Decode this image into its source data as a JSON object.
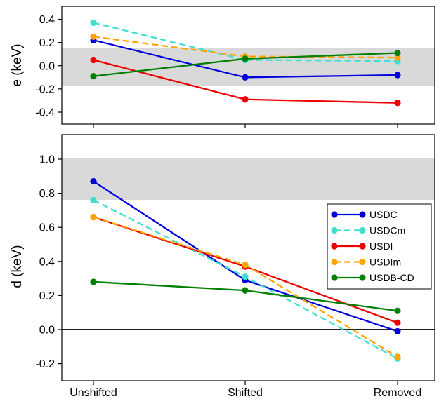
{
  "chart_data": [
    {
      "type": "line",
      "ylabel": "e (keV)",
      "xlabel": "",
      "categories": [
        "Unshifted",
        "Shifted",
        "Removed"
      ],
      "ylim": [
        -0.52,
        0.52
      ],
      "yticks": [
        "0.4",
        "0.2",
        "0.0",
        "-0.2",
        "-0.4"
      ],
      "ytick_values": [
        0.4,
        0.2,
        0.0,
        -0.2,
        -0.4
      ],
      "band": [
        -0.17,
        0.15
      ],
      "band_color": "#d9d9d9",
      "series": [
        {
          "name": "USDC",
          "color": "#0000dd",
          "dashed": false,
          "values": [
            0.22,
            -0.1,
            -0.08
          ]
        },
        {
          "name": "USDCm",
          "color": "#40e0d0",
          "dashed": true,
          "values": [
            0.37,
            0.05,
            0.04
          ]
        },
        {
          "name": "USDI",
          "color": "#ee0000",
          "dashed": false,
          "values": [
            0.05,
            -0.29,
            -0.32
          ]
        },
        {
          "name": "USDIm",
          "color": "#ffa500",
          "dashed": true,
          "values": [
            0.25,
            0.08,
            0.07
          ]
        },
        {
          "name": "USDB-CD",
          "color": "#008000",
          "dashed": false,
          "values": [
            -0.09,
            0.06,
            0.11
          ]
        }
      ]
    },
    {
      "type": "line",
      "ylabel": "d (keV)",
      "xlabel": "",
      "categories": [
        "Unshifted",
        "Shifted",
        "Removed"
      ],
      "ylim": [
        -0.31,
        1.15
      ],
      "yticks": [
        "1.0",
        "0.8",
        "0.6",
        "0.4",
        "0.2",
        "0.0",
        "-0.2"
      ],
      "ytick_values": [
        1.0,
        0.8,
        0.6,
        0.4,
        0.2,
        0.0,
        -0.2
      ],
      "band": [
        0.76,
        1.01
      ],
      "band_color": "#d9d9d9",
      "zero_line": true,
      "legend": "right",
      "series": [
        {
          "name": "USDC",
          "color": "#0000dd",
          "dashed": false,
          "values": [
            0.87,
            0.29,
            -0.01
          ]
        },
        {
          "name": "USDCm",
          "color": "#40e0d0",
          "dashed": true,
          "values": [
            0.76,
            0.31,
            -0.17
          ]
        },
        {
          "name": "USDI",
          "color": "#ee0000",
          "dashed": false,
          "values": [
            0.66,
            0.37,
            0.04
          ]
        },
        {
          "name": "USDIm",
          "color": "#ffa500",
          "dashed": true,
          "values": [
            0.66,
            0.38,
            -0.16
          ]
        },
        {
          "name": "USDB-CD",
          "color": "#008000",
          "dashed": false,
          "values": [
            0.28,
            0.23,
            0.11
          ]
        }
      ]
    }
  ],
  "legend": {
    "entries": [
      "USDC",
      "USDCm",
      "USDI",
      "USDIm",
      "USDB-CD"
    ]
  }
}
